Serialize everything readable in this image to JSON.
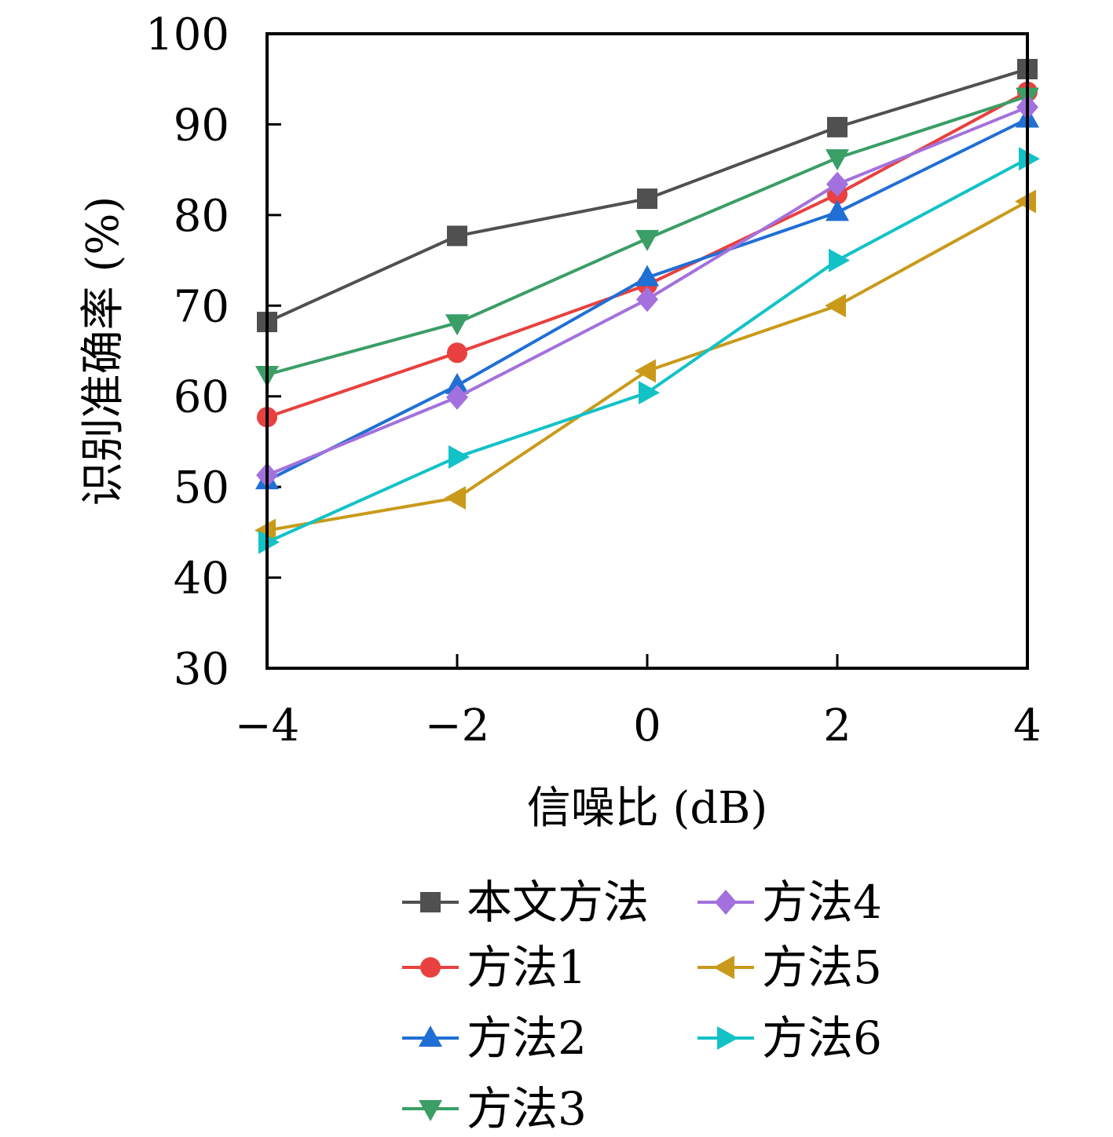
{
  "chart_data": {
    "type": "line",
    "title": "",
    "xlabel": "信噪比 (dB)",
    "ylabel": "识别准确率 (%)",
    "x": [
      -4,
      -2,
      0,
      2,
      4
    ],
    "x_tick_labels": [
      "−4",
      "−2",
      "0",
      "2",
      "4"
    ],
    "xlim": [
      -4,
      4
    ],
    "ylim": [
      30,
      100
    ],
    "y_ticks": [
      30,
      40,
      50,
      60,
      70,
      80,
      90,
      100
    ],
    "grid": false,
    "legend_position": "bottom",
    "series": [
      {
        "name": "本文方法",
        "color": "#505050",
        "marker": "square",
        "values": [
          68.2,
          77.7,
          81.8,
          89.7,
          96.1
        ]
      },
      {
        "name": "方法1",
        "color": "#e8413f",
        "marker": "circle",
        "values": [
          57.7,
          64.8,
          72.3,
          82.3,
          93.6
        ]
      },
      {
        "name": "方法2",
        "color": "#1f6fd4",
        "marker": "triangle-up",
        "values": [
          50.7,
          61.2,
          73.1,
          80.3,
          90.6
        ]
      },
      {
        "name": "方法3",
        "color": "#3a9e66",
        "marker": "triangle-down",
        "values": [
          62.4,
          68.1,
          77.4,
          86.3,
          93.1
        ]
      },
      {
        "name": "方法4",
        "color": "#a371dd",
        "marker": "diamond",
        "values": [
          51.3,
          59.9,
          70.7,
          83.4,
          91.9
        ]
      },
      {
        "name": "方法5",
        "color": "#c99a1a",
        "marker": "triangle-left",
        "values": [
          45.2,
          48.8,
          62.8,
          70.0,
          81.5
        ]
      },
      {
        "name": "方法6",
        "color": "#12c2c7",
        "marker": "triangle-right",
        "values": [
          43.9,
          53.3,
          60.4,
          75.0,
          86.2
        ]
      }
    ]
  }
}
